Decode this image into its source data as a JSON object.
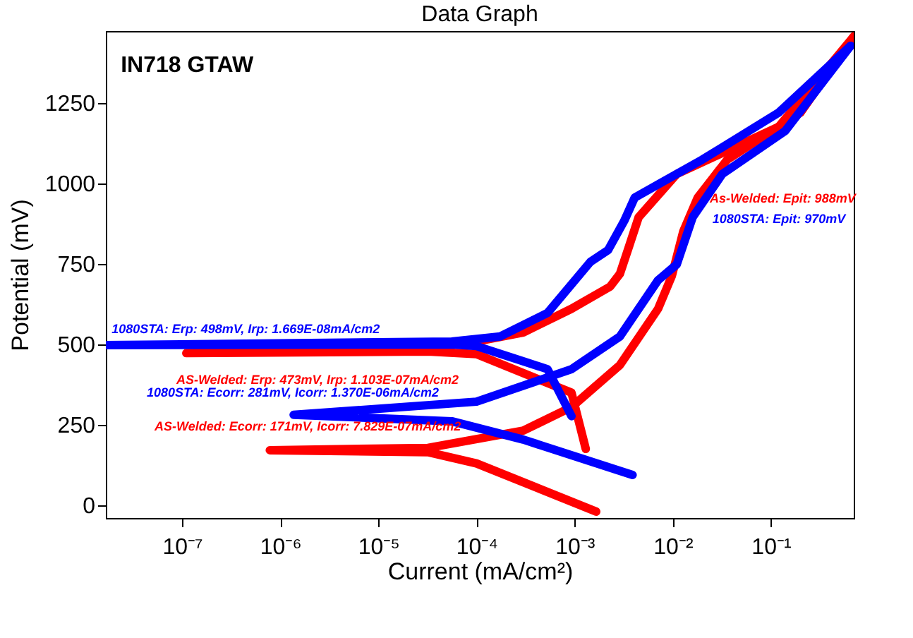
{
  "chart_data": {
    "type": "line",
    "title": "Data Graph",
    "xlabel": "Current (mA/cm²)",
    "ylabel": "Potential (mV)",
    "log": "x",
    "grid": false,
    "line_style": "solid",
    "xlim": [
      1.669e-08,
      0.7
    ],
    "ylim": [
      -40,
      1475
    ],
    "xticks": [
      {
        "value": 1e-07,
        "label": "10⁻⁷"
      },
      {
        "value": 1e-06,
        "label": "10⁻⁶"
      },
      {
        "value": 1e-05,
        "label": "10⁻⁵"
      },
      {
        "value": 0.0001,
        "label": "10⁻⁴"
      },
      {
        "value": 0.001,
        "label": "10⁻³"
      },
      {
        "value": 0.01,
        "label": "10⁻²"
      },
      {
        "value": 0.1,
        "label": "10⁻¹"
      }
    ],
    "yticks": [
      0,
      250,
      500,
      750,
      1000,
      1250
    ],
    "series": [
      {
        "color": "#ff0000",
        "x": [
          0.00166,
          0.0001,
          3.2e-05,
          7.829e-07,
          3.2e-05,
          0.0003,
          0.00093,
          0.0029,
          0.0071,
          0.0098,
          0.0128,
          0.018,
          0.036,
          0.2,
          0.7
        ],
        "values": [
          -20,
          130,
          165,
          171,
          178,
          232,
          305,
          436,
          611,
          713,
          851,
          957,
          1075,
          1221,
          1458
        ]
      },
      {
        "color": "#ff0000",
        "x": [
          0.7,
          0.12,
          0.011,
          0.0045,
          0.0036,
          0.0029,
          0.0023,
          0.00093,
          0.0003,
          0.0001,
          3.2e-05,
          1.103e-07,
          3.2e-05,
          0.0001,
          0.00093,
          0.0013
        ],
        "values": [
          1458,
          1177,
          1030,
          896,
          806,
          720,
          680,
          611,
          537,
          509,
          489,
          473,
          478,
          470,
          350,
          175
        ]
      },
      {
        "color": "#0000ff",
        "x": [
          0.0039,
          0.0003,
          5.6e-05,
          1.37e-06,
          0.0001,
          0.00093,
          0.0029,
          0.0071,
          0.011,
          0.016,
          0.032,
          0.14,
          0.65
        ],
        "values": [
          94,
          204,
          261,
          281,
          322,
          423,
          525,
          700,
          749,
          896,
          1030,
          1164,
          1429
        ]
      },
      {
        "color": "#0000ff",
        "x": [
          0.65,
          0.12,
          0.02,
          0.0041,
          0.0032,
          0.0022,
          0.00145,
          0.00053,
          0.000175,
          5.6e-05,
          1.669e-08,
          5.6e-05,
          0.0001,
          0.00053,
          0.00093
        ],
        "values": [
          1429,
          1221,
          1075,
          957,
          884,
          794,
          757,
          598,
          525,
          509,
          498,
          500,
          495,
          423,
          277
        ]
      }
    ],
    "annotations": [
      "IN718 GTAW",
      "1080STA: Erp: 498mV, Irp: 1.669E-08mA/cm2",
      "AS-Welded: Erp: 473mV, Irp: 1.103E-07mA/cm2",
      "1080STA: Ecorr: 281mV, Icorr: 1.370E-06mA/cm2",
      "AS-Welded: Ecorr: 171mV, Icorr: 7.829E-07mA/cm2",
      "1080STA: Epit: 970mV",
      "As-Welded: Epit: 988mV"
    ]
  }
}
